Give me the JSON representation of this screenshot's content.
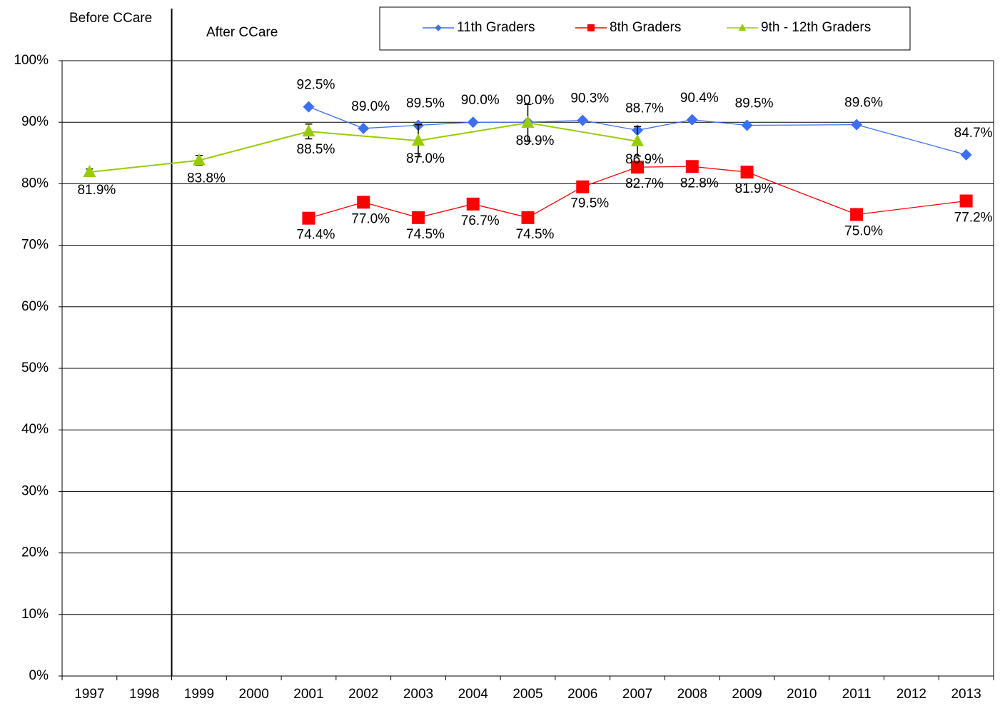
{
  "chart_data": {
    "type": "line",
    "annotations": [
      "Before CCare",
      "After CCare"
    ],
    "xlim": [
      1996.5,
      2013.5
    ],
    "xticks": [
      1997,
      1998,
      1999,
      2000,
      2001,
      2002,
      2003,
      2004,
      2005,
      2006,
      2007,
      2008,
      2009,
      2010,
      2011,
      2012,
      2013
    ],
    "ylim": [
      0,
      100
    ],
    "yticks": [
      {
        "value": 0,
        "label": "0%"
      },
      {
        "value": 10,
        "label": "10%"
      },
      {
        "value": 20,
        "label": "20%"
      },
      {
        "value": 30,
        "label": "30%"
      },
      {
        "value": 40,
        "label": "40%"
      },
      {
        "value": 50,
        "label": "50%"
      },
      {
        "value": 60,
        "label": "60%"
      },
      {
        "value": 70,
        "label": "70%"
      },
      {
        "value": 80,
        "label": "80%"
      },
      {
        "value": 90,
        "label": "90%"
      },
      {
        "value": 100,
        "label": "100%"
      }
    ],
    "grid": true,
    "legend": "top",
    "series": [
      {
        "name": "11th Graders",
        "color": "#3d6ff0",
        "marker": "diamond",
        "x": [
          2001,
          2002,
          2003,
          2004,
          2005,
          2006,
          2007,
          2008,
          2009,
          2011,
          2013
        ],
        "values": [
          92.5,
          89.0,
          89.5,
          90.0,
          90.0,
          90.3,
          88.7,
          90.4,
          89.5,
          89.6,
          84.7
        ],
        "value_labels": [
          "92.5%",
          "89.0%",
          "89.5%",
          "90.0%",
          "90.0%",
          "90.3%",
          "88.7%",
          "90.4%",
          "89.5%",
          "89.6%",
          "84.7%"
        ]
      },
      {
        "name": "8th Graders",
        "color": "#ff0000",
        "marker": "square",
        "x": [
          2001,
          2002,
          2003,
          2004,
          2005,
          2006,
          2007,
          2008,
          2009,
          2011,
          2013
        ],
        "values": [
          74.4,
          77.0,
          74.5,
          76.7,
          74.5,
          79.5,
          82.7,
          82.8,
          81.9,
          75.0,
          77.2
        ],
        "value_labels": [
          "74.4%",
          "77.0%",
          "74.5%",
          "76.7%",
          "74.5%",
          "79.5%",
          "82.7%",
          "82.8%",
          "81.9%",
          "75.0%",
          "77.2%"
        ]
      },
      {
        "name": "9th - 12th Graders",
        "color": "#99cc00",
        "marker": "triangle",
        "x": [
          1997,
          1999,
          2001,
          2003,
          2005,
          2007
        ],
        "values": [
          81.9,
          83.8,
          88.5,
          87.0,
          89.9,
          86.9
        ],
        "errors": [
          0.5,
          0.8,
          1.2,
          2.6,
          3.0,
          2.4
        ],
        "value_labels": [
          "81.9%",
          "83.8%",
          "88.5%",
          "87.0%",
          "89.9%",
          "86.9%"
        ]
      }
    ]
  }
}
